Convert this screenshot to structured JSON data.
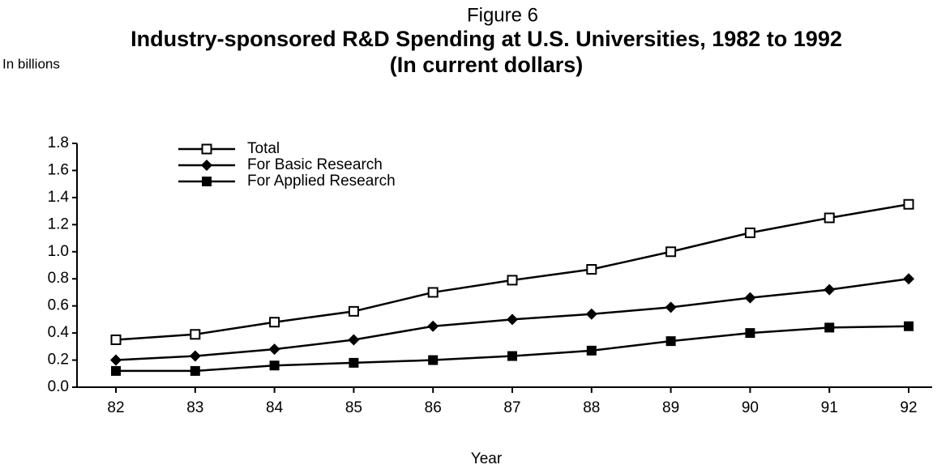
{
  "chart_data": {
    "type": "line",
    "figure_label": "Figure 6",
    "title": "Industry-sponsored R&D Spending at U.S. Universities, 1982 to 1992",
    "subtitle": "(In current dollars)",
    "y_label": "In billions",
    "x_label": "Year",
    "categories": [
      "82",
      "83",
      "84",
      "85",
      "86",
      "87",
      "88",
      "89",
      "90",
      "91",
      "92"
    ],
    "series": [
      {
        "name": "Total",
        "color": "#000000",
        "marker": "open-square",
        "values": [
          0.35,
          0.39,
          0.48,
          0.56,
          0.7,
          0.79,
          0.87,
          1.0,
          1.14,
          1.25,
          1.35
        ]
      },
      {
        "name": "For Basic Research",
        "color": "#000000",
        "marker": "diamond",
        "values": [
          0.2,
          0.23,
          0.28,
          0.35,
          0.45,
          0.5,
          0.54,
          0.59,
          0.66,
          0.72,
          0.8
        ]
      },
      {
        "name": "For Applied Research",
        "color": "#000000",
        "marker": "filled-square",
        "values": [
          0.12,
          0.12,
          0.16,
          0.18,
          0.2,
          0.23,
          0.27,
          0.34,
          0.4,
          0.44,
          0.45
        ]
      }
    ],
    "ylim": [
      0,
      1.8
    ],
    "yticks": [
      {
        "value": 0,
        "label": "0.0"
      },
      0.2,
      0.4,
      0.6,
      0.8,
      {
        "value": 1,
        "label": "1.0"
      },
      1.2,
      1.4,
      1.6,
      1.8
    ],
    "grid": false,
    "legend": "upper-left"
  }
}
